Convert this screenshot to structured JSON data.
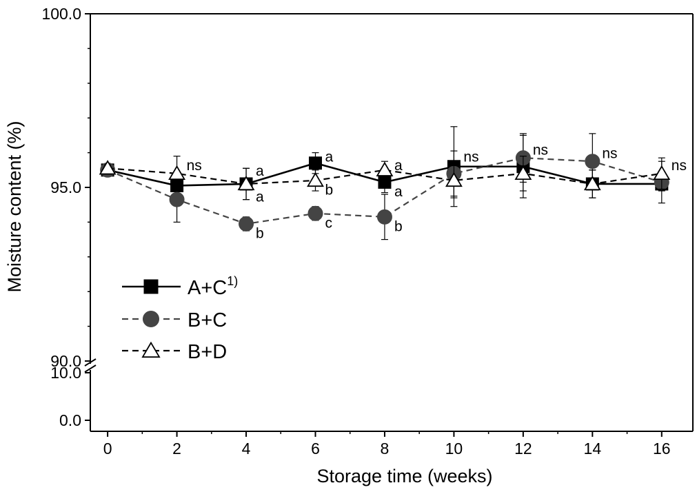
{
  "chart_data": {
    "type": "line",
    "title": "",
    "xlabel": "Storage time (weeks)",
    "ylabel": "Moisture content (%)",
    "x": [
      0,
      2,
      4,
      6,
      8,
      10,
      12,
      14,
      16
    ],
    "xticks": [
      "0",
      "2",
      "4",
      "6",
      "8",
      "10",
      "12",
      "14",
      "16"
    ],
    "xlim": [
      -0.5,
      16.9
    ],
    "y_axis": {
      "broken": true,
      "lower_segment": {
        "range": [
          0.0,
          10.0
        ],
        "ticks": [
          "0.0",
          "10.0"
        ]
      },
      "upper_segment": {
        "range": [
          90.0,
          100.0
        ],
        "ticks": [
          "90.0",
          "95.0",
          "100.0"
        ]
      }
    },
    "grid": false,
    "legend": {
      "placement": "lower-left",
      "entries": [
        {
          "label": "A+C",
          "superscript": "1)"
        },
        {
          "label": "B+C",
          "superscript": ""
        },
        {
          "label": "B+D",
          "superscript": ""
        }
      ]
    },
    "series": [
      {
        "name": "A+C",
        "marker": "square-filled",
        "line": "solid",
        "color": "#000000",
        "values": [
          95.5,
          95.05,
          95.1,
          95.7,
          95.15,
          95.6,
          95.6,
          95.1,
          95.1
        ],
        "errors": [
          0.1,
          0.3,
          0.45,
          0.3,
          0.3,
          1.15,
          0.9,
          0.4,
          0.2
        ]
      },
      {
        "name": "B+C",
        "marker": "circle-filled",
        "line": "dashed",
        "color": "#444444",
        "values": [
          95.5,
          94.65,
          93.95,
          94.25,
          94.15,
          95.4,
          95.85,
          95.75,
          95.15
        ],
        "errors": [
          0.1,
          0.65,
          0.2,
          0.2,
          0.65,
          0.65,
          0.7,
          0.8,
          0.6
        ]
      },
      {
        "name": "B+D",
        "marker": "triangle-open",
        "line": "dashed",
        "color": "#000000",
        "values": [
          95.55,
          95.4,
          95.1,
          95.2,
          95.5,
          95.2,
          95.4,
          95.1,
          95.4
        ],
        "errors": [
          0.1,
          0.5,
          0.45,
          0.3,
          0.25,
          0.5,
          0.5,
          0.4,
          0.45
        ]
      }
    ],
    "annotations": [
      {
        "text": "ns",
        "x": 2,
        "y": 95.65
      },
      {
        "text": "a",
        "x": 4,
        "y": 95.5
      },
      {
        "text": "a",
        "x": 4,
        "y": 94.75
      },
      {
        "text": "b",
        "x": 4,
        "y": 93.7
      },
      {
        "text": "a",
        "x": 6,
        "y": 95.9
      },
      {
        "text": "b",
        "x": 6,
        "y": 94.95
      },
      {
        "text": "c",
        "x": 6,
        "y": 94.0
      },
      {
        "text": "a",
        "x": 8,
        "y": 95.65
      },
      {
        "text": "a",
        "x": 8,
        "y": 94.9
      },
      {
        "text": "b",
        "x": 8,
        "y": 93.9
      },
      {
        "text": "ns",
        "x": 10,
        "y": 95.9
      },
      {
        "text": "ns",
        "x": 12,
        "y": 96.1
      },
      {
        "text": "ns",
        "x": 14,
        "y": 96.0
      },
      {
        "text": "ns",
        "x": 16,
        "y": 95.65
      }
    ]
  }
}
